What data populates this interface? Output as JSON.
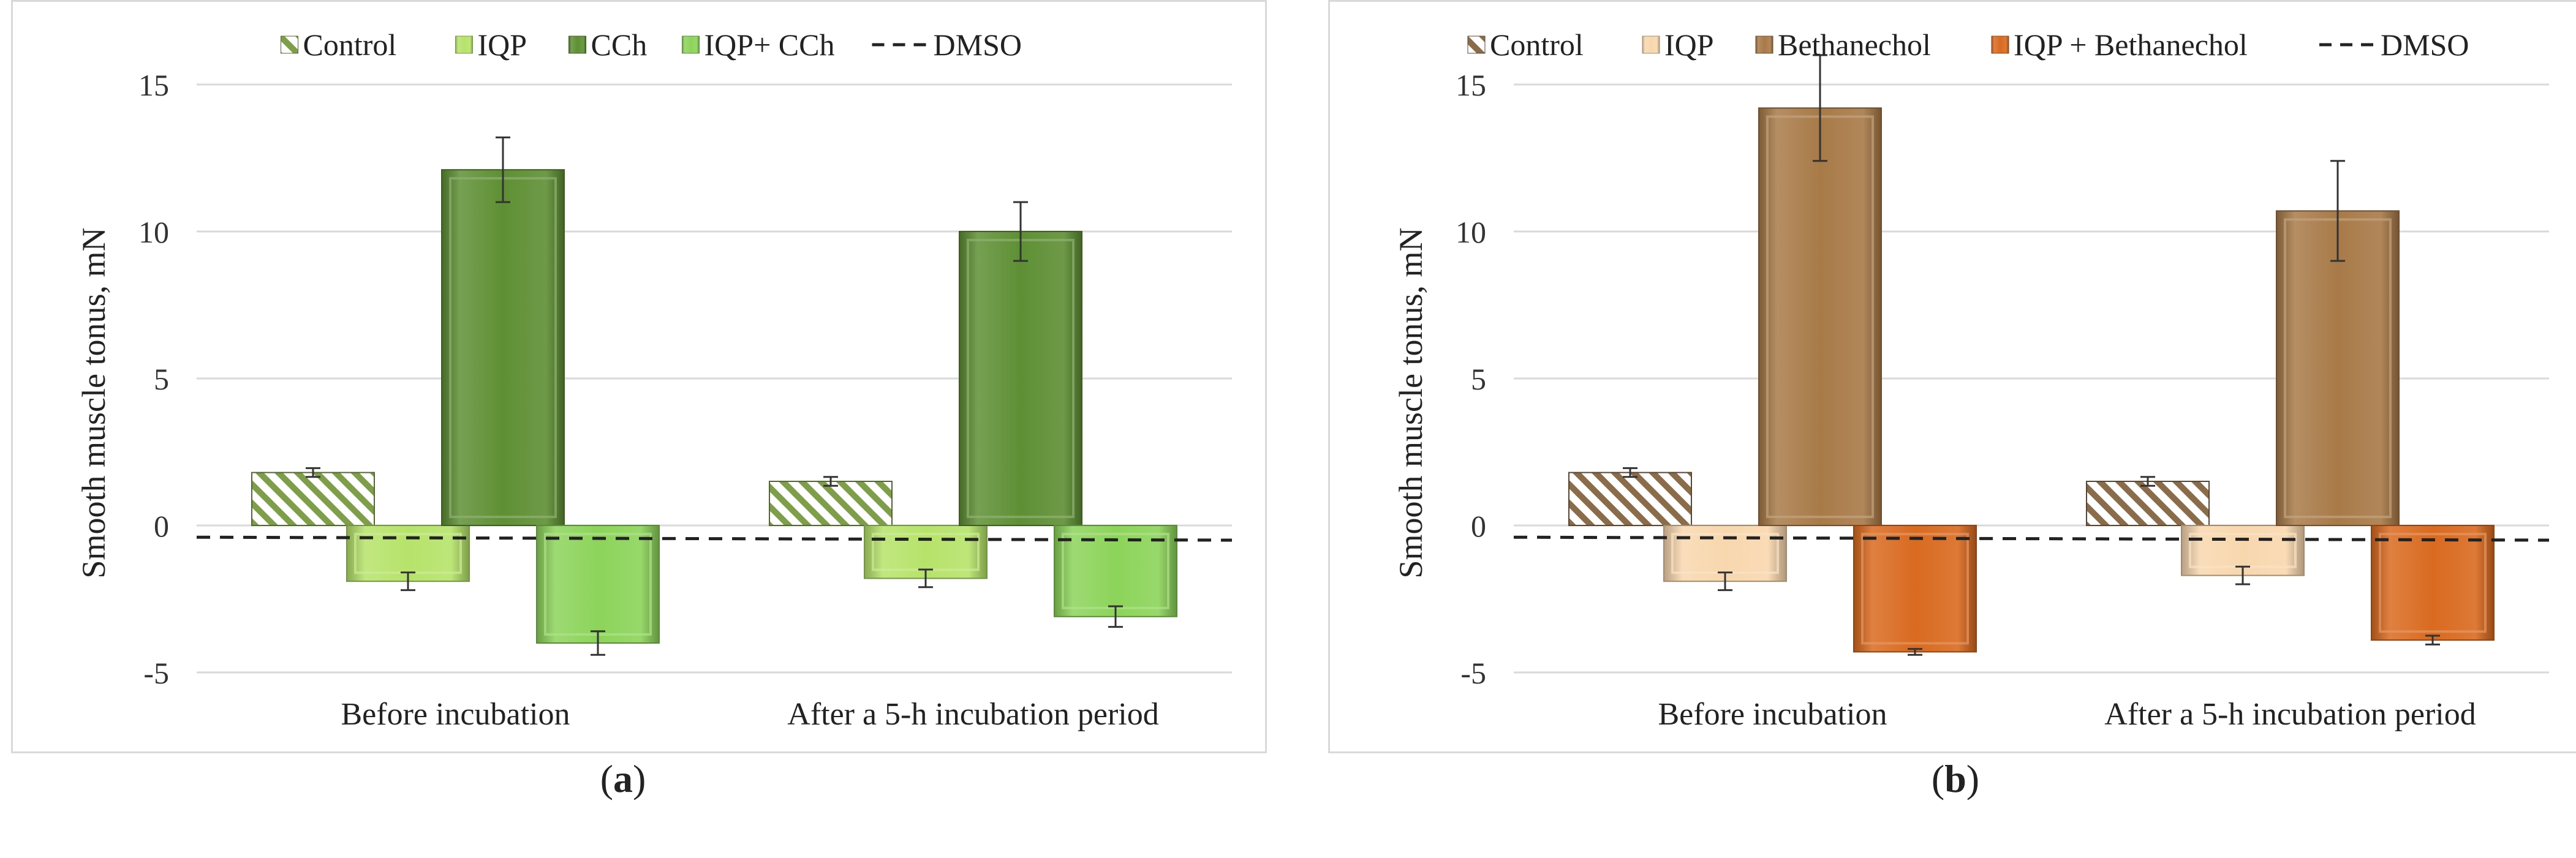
{
  "chart_data": [
    {
      "type": "bar",
      "panel": "a",
      "caption": "a",
      "ylabel": "Smooth muscle tonus, mN",
      "xlabel": "",
      "ylim": [
        -5,
        15
      ],
      "yticks": [
        -5,
        0,
        5,
        10,
        15
      ],
      "grid": true,
      "legend_position": "top",
      "categories": [
        "Before incubation",
        "After a 5-h incubation period"
      ],
      "series": [
        {
          "name": "Control",
          "values": [
            1.8,
            1.5
          ],
          "errors": [
            0.15,
            0.15
          ],
          "color": "#7f9e4a",
          "pattern": "hatch"
        },
        {
          "name": "IQP",
          "values": [
            -1.9,
            -1.8
          ],
          "errors": [
            0.3,
            0.3
          ],
          "color": "#b6e36a"
        },
        {
          "name": "CCh",
          "values": [
            12.1,
            10.0
          ],
          "errors": [
            1.1,
            1.0
          ],
          "color": "#5e8f34"
        },
        {
          "name": "IQP+ CCh",
          "values": [
            -4.0,
            -3.1
          ],
          "errors": [
            0.4,
            0.35
          ],
          "color": "#8cd45a"
        }
      ],
      "reference_line": {
        "name": "DMSO",
        "y_start": -0.4,
        "y_end": -0.5,
        "style": "dashed"
      }
    },
    {
      "type": "bar",
      "panel": "b",
      "caption": "b",
      "ylabel": "Smooth muscle tonus, mN",
      "xlabel": "",
      "ylim": [
        -5,
        15
      ],
      "yticks": [
        -5,
        0,
        5,
        10,
        15
      ],
      "grid": true,
      "legend_position": "top",
      "categories": [
        "Before incubation",
        "After a 5-h incubation period"
      ],
      "series": [
        {
          "name": "Control",
          "values": [
            1.8,
            1.5
          ],
          "errors": [
            0.15,
            0.15
          ],
          "color": "#8a6b4a",
          "pattern": "hatch"
        },
        {
          "name": "IQP",
          "values": [
            -1.9,
            -1.7
          ],
          "errors": [
            0.3,
            0.3
          ],
          "color": "#f8d7ae"
        },
        {
          "name": "Bethanechol",
          "values": [
            14.2,
            10.7
          ],
          "errors": [
            1.8,
            1.7
          ],
          "color": "#a87a48"
        },
        {
          "name": "IQP + Bethanechol",
          "values": [
            -4.3,
            -3.9
          ],
          "errors": [
            0.1,
            0.15
          ],
          "color": "#d96a20"
        }
      ],
      "reference_line": {
        "name": "DMSO",
        "y_start": -0.4,
        "y_end": -0.5,
        "style": "dashed"
      }
    }
  ]
}
